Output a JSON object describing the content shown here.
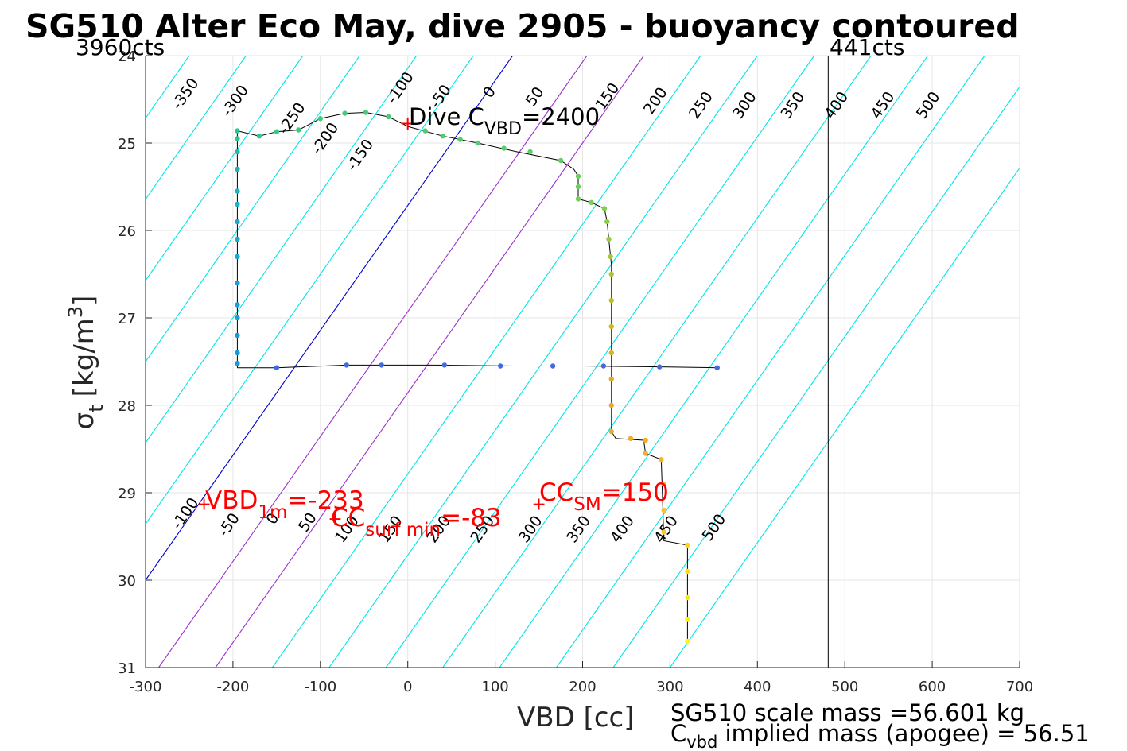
{
  "chart_data": {
    "type": "scatter",
    "title": "SG510 Alter Eco May, dive 2905 - buoyancy contoured",
    "xlabel": "VBD [cc]",
    "ylabel_main": "σ",
    "ylabel_sub": "t",
    "ylabel_units": "[kg/m",
    "ylabel_sup": "3",
    "ylabel_close": "]",
    "xlim": [
      -300,
      700
    ],
    "ylim": [
      24,
      31
    ],
    "y_reversed": true,
    "grid": true,
    "xticks": [
      -300,
      -200,
      -100,
      0,
      100,
      200,
      300,
      400,
      500,
      600,
      700
    ],
    "xtick_labels": [
      "-300",
      "-200",
      "-100",
      "0",
      "100",
      "200",
      "300",
      "400",
      "500",
      "600",
      "700"
    ],
    "yticks": [
      24,
      25,
      26,
      27,
      28,
      29,
      30,
      31
    ],
    "ytick_labels": [
      "24",
      "25",
      "26",
      "27",
      "28",
      "29",
      "30",
      "31"
    ],
    "counts_left": "3960cts",
    "counts_right": "441cts",
    "counts_line_x": 481,
    "contour_slope_cc_per_sigma": 70,
    "contours": {
      "values": [
        -350,
        -300,
        -250,
        -200,
        -150,
        -100,
        -50,
        0,
        50,
        100,
        150,
        200,
        250,
        300,
        350,
        400,
        450,
        500
      ],
      "x_at_sigma24": [
        -315,
        -250,
        -185,
        -120,
        -55,
        10,
        75,
        120,
        205,
        270,
        335,
        400,
        465,
        530,
        595,
        660,
        725,
        790
      ],
      "colors": {
        "default": "#00e6e6",
        "zero": "#0000cc",
        "special": "#9933cc"
      },
      "special_values": [
        50,
        100
      ],
      "upper_labels": [
        {
          "text": "-350",
          "x": -250,
          "y": 24.47
        },
        {
          "text": "-300",
          "x": -193,
          "y": 24.55
        },
        {
          "text": "-250",
          "x": -128,
          "y": 24.75
        },
        {
          "text": "-200",
          "x": -90,
          "y": 24.98
        },
        {
          "text": "-150",
          "x": -50,
          "y": 25.17
        },
        {
          "text": "-100",
          "x": -4,
          "y": 24.4
        },
        {
          "text": "-50",
          "x": 42,
          "y": 24.5
        },
        {
          "text": "0",
          "x": 98,
          "y": 24.45
        },
        {
          "text": "50",
          "x": 150,
          "y": 24.5
        },
        {
          "text": "150",
          "x": 233,
          "y": 24.5
        },
        {
          "text": "200",
          "x": 288,
          "y": 24.55
        },
        {
          "text": "250",
          "x": 340,
          "y": 24.6
        },
        {
          "text": "300",
          "x": 390,
          "y": 24.6
        },
        {
          "text": "350",
          "x": 445,
          "y": 24.6
        },
        {
          "text": "400",
          "x": 495,
          "y": 24.6
        },
        {
          "text": "450",
          "x": 548,
          "y": 24.6
        },
        {
          "text": "500",
          "x": 600,
          "y": 24.6
        }
      ],
      "lower_labels": [
        {
          "text": "-100",
          "x": -250,
          "y": 29.27
        },
        {
          "text": "-50",
          "x": -200,
          "y": 29.4
        },
        {
          "text": "0",
          "x": -150,
          "y": 29.33
        },
        {
          "text": "50",
          "x": -110,
          "y": 29.37
        },
        {
          "text": "100",
          "x": -65,
          "y": 29.45
        },
        {
          "text": "150",
          "x": -15,
          "y": 29.45
        },
        {
          "text": "200",
          "x": 40,
          "y": 29.45
        },
        {
          "text": "250",
          "x": 90,
          "y": 29.45
        },
        {
          "text": "300",
          "x": 145,
          "y": 29.45
        },
        {
          "text": "350",
          "x": 200,
          "y": 29.45
        },
        {
          "text": "400",
          "x": 250,
          "y": 29.45
        },
        {
          "text": "450",
          "x": 300,
          "y": 29.45
        },
        {
          "text": "500",
          "x": 355,
          "y": 29.43
        }
      ]
    },
    "dive_path": [
      [
        -195,
        27.57
      ],
      [
        -195,
        24.86
      ],
      [
        -170,
        24.92
      ],
      [
        -150,
        24.87
      ],
      [
        -125,
        24.85
      ],
      [
        -100,
        24.72
      ],
      [
        -72,
        24.66
      ],
      [
        -48,
        24.65
      ],
      [
        -22,
        24.7
      ],
      [
        0,
        24.81
      ],
      [
        40,
        24.92
      ],
      [
        80,
        25.0
      ],
      [
        125,
        25.1
      ],
      [
        175,
        25.2
      ],
      [
        190,
        25.3
      ],
      [
        195,
        25.38
      ],
      [
        195,
        25.64
      ],
      [
        210,
        25.68
      ],
      [
        225,
        25.75
      ],
      [
        228,
        25.9
      ],
      [
        230,
        26.1
      ],
      [
        232,
        26.3
      ],
      [
        233,
        26.4
      ],
      [
        233,
        28.3
      ],
      [
        238,
        28.38
      ],
      [
        270,
        28.4
      ],
      [
        272,
        28.55
      ],
      [
        290,
        28.62
      ],
      [
        293,
        29.55
      ],
      [
        320,
        29.6
      ],
      [
        320,
        30.7
      ]
    ],
    "horizontal_path": [
      [
        -195,
        27.57
      ],
      [
        -150,
        27.57
      ],
      [
        -70,
        27.54
      ],
      [
        30,
        27.54
      ],
      [
        120,
        27.55
      ],
      [
        200,
        27.55
      ],
      [
        290,
        27.56
      ],
      [
        355,
        27.57
      ]
    ],
    "points": [
      {
        "x": -195,
        "y": 24.86,
        "c": "#2dc48e"
      },
      {
        "x": -195,
        "y": 24.95,
        "c": "#2dc48e"
      },
      {
        "x": -195,
        "y": 25.1,
        "c": "#27b9a2"
      },
      {
        "x": -195,
        "y": 25.3,
        "c": "#20b2aa"
      },
      {
        "x": -195,
        "y": 25.55,
        "c": "#1fb3c0"
      },
      {
        "x": -195,
        "y": 25.7,
        "c": "#1fb3c0"
      },
      {
        "x": -195,
        "y": 25.9,
        "c": "#1ba8cf"
      },
      {
        "x": -195,
        "y": 26.1,
        "c": "#1ba8cf"
      },
      {
        "x": -195,
        "y": 26.3,
        "c": "#1ba8cf"
      },
      {
        "x": -195,
        "y": 26.6,
        "c": "#1a9fd6"
      },
      {
        "x": -195,
        "y": 26.85,
        "c": "#1a9fd6"
      },
      {
        "x": -195,
        "y": 27.0,
        "c": "#1a9fd6"
      },
      {
        "x": -195,
        "y": 27.2,
        "c": "#1a99d9"
      },
      {
        "x": -195,
        "y": 27.4,
        "c": "#1a99d9"
      },
      {
        "x": -195,
        "y": 27.52,
        "c": "#1a99d9"
      },
      {
        "x": -170,
        "y": 24.92,
        "c": "#2dc48e"
      },
      {
        "x": -150,
        "y": 24.87,
        "c": "#3dc882"
      },
      {
        "x": -125,
        "y": 24.85,
        "c": "#3dc882"
      },
      {
        "x": -100,
        "y": 24.72,
        "c": "#45cb78"
      },
      {
        "x": -72,
        "y": 24.66,
        "c": "#45cb78"
      },
      {
        "x": -48,
        "y": 24.65,
        "c": "#45cb78"
      },
      {
        "x": -22,
        "y": 24.7,
        "c": "#45cb78"
      },
      {
        "x": 20,
        "y": 24.86,
        "c": "#50cc70"
      },
      {
        "x": 40,
        "y": 24.92,
        "c": "#50cc70"
      },
      {
        "x": 60,
        "y": 24.96,
        "c": "#55cd6d"
      },
      {
        "x": 80,
        "y": 25.0,
        "c": "#55cd6d"
      },
      {
        "x": 110,
        "y": 25.06,
        "c": "#58ce6b"
      },
      {
        "x": 140,
        "y": 25.1,
        "c": "#5bce69"
      },
      {
        "x": 175,
        "y": 25.2,
        "c": "#60cf66"
      },
      {
        "x": 195,
        "y": 25.38,
        "c": "#66cf62"
      },
      {
        "x": 195,
        "y": 25.5,
        "c": "#6ccf5e"
      },
      {
        "x": 195,
        "y": 25.64,
        "c": "#72d05a"
      },
      {
        "x": 210,
        "y": 25.68,
        "c": "#7ad055"
      },
      {
        "x": 225,
        "y": 25.75,
        "c": "#82cf50"
      },
      {
        "x": 228,
        "y": 25.9,
        "c": "#8ecc48"
      },
      {
        "x": 230,
        "y": 26.1,
        "c": "#98c942"
      },
      {
        "x": 232,
        "y": 26.3,
        "c": "#a3c63c"
      },
      {
        "x": 233,
        "y": 26.5,
        "c": "#b0c235"
      },
      {
        "x": 233,
        "y": 26.8,
        "c": "#bfbd2e"
      },
      {
        "x": 233,
        "y": 27.1,
        "c": "#cbb82a"
      },
      {
        "x": 233,
        "y": 27.4,
        "c": "#d6b32a"
      },
      {
        "x": 233,
        "y": 27.7,
        "c": "#e0ae2a"
      },
      {
        "x": 233,
        "y": 28.0,
        "c": "#e8aa2b"
      },
      {
        "x": 233,
        "y": 28.3,
        "c": "#efa82c"
      },
      {
        "x": 255,
        "y": 28.38,
        "c": "#f3a92c"
      },
      {
        "x": 272,
        "y": 28.4,
        "c": "#f5ab2b"
      },
      {
        "x": 272,
        "y": 28.55,
        "c": "#f7ae29"
      },
      {
        "x": 290,
        "y": 28.62,
        "c": "#f9b327"
      },
      {
        "x": 293,
        "y": 28.9,
        "c": "#fbba23"
      },
      {
        "x": 293,
        "y": 29.2,
        "c": "#fcc21f"
      },
      {
        "x": 293,
        "y": 29.45,
        "c": "#fdcb1b"
      },
      {
        "x": 320,
        "y": 29.6,
        "c": "#fed418"
      },
      {
        "x": 320,
        "y": 29.9,
        "c": "#fede16"
      },
      {
        "x": 320,
        "y": 30.2,
        "c": "#ffe615"
      },
      {
        "x": 320,
        "y": 30.45,
        "c": "#ffee14"
      },
      {
        "x": 320,
        "y": 30.7,
        "c": "#fff414"
      },
      {
        "x": -150,
        "y": 27.57,
        "c": "#4169e1"
      },
      {
        "x": -70,
        "y": 27.54,
        "c": "#4169e1"
      },
      {
        "x": -30,
        "y": 27.54,
        "c": "#4169e1"
      },
      {
        "x": 42,
        "y": 27.54,
        "c": "#4169e1"
      },
      {
        "x": 106,
        "y": 27.55,
        "c": "#4169e1"
      },
      {
        "x": 166,
        "y": 27.55,
        "c": "#4169e1"
      },
      {
        "x": 224,
        "y": 27.55,
        "c": "#4169e1"
      },
      {
        "x": 288,
        "y": 27.56,
        "c": "#4169e1"
      },
      {
        "x": 354,
        "y": 27.57,
        "c": "#4169e1"
      }
    ],
    "annotations": {
      "dive_cvbd": {
        "prefix": "Dive C",
        "sub": "VBD",
        "suffix": "=2400",
        "marker_x": 0,
        "marker_y": 24.78
      },
      "vbd_1m": {
        "prefix": "VBD",
        "sub": "1m",
        "suffix": "=-233",
        "marker_x": -233,
        "marker_y": 29.13
      },
      "cc_surf": {
        "prefix": "CC",
        "sub": "surf min",
        "suffix": "=-83",
        "marker_x": -83,
        "marker_y": 29.3
      },
      "cc_sm": {
        "prefix": "CC",
        "sub": "SM",
        "suffix": "=150",
        "marker_x": 150,
        "marker_y": 29.13
      },
      "color": "#ff0000"
    },
    "footer": {
      "line1": "SG510 scale mass =56.601 kg",
      "line2_prefix": "C",
      "line2_sub": "vbd",
      "line2_suffix": " implied mass (apogee) = 56.51"
    }
  }
}
